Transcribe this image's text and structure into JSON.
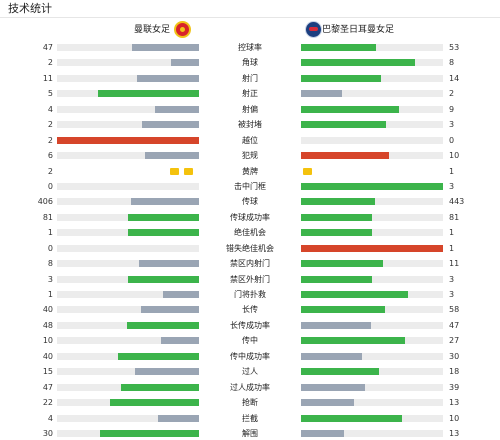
{
  "header": {
    "title": "技术统计"
  },
  "teams": {
    "home": {
      "name": "曼联女足",
      "logo_icon": "manchester-united-crest-icon"
    },
    "away": {
      "name": "巴黎圣日耳曼女足",
      "logo_icon": "psg-crest-icon"
    }
  },
  "colors": {
    "leading": "#3cb44b",
    "trailing": "#9aa5b4",
    "negative": "#d6452a",
    "track": "#ececec",
    "card": "#f4c20d"
  },
  "stats": [
    {
      "label": "控球率",
      "home": "47",
      "away": "53",
      "home_pct": 0.47,
      "away_pct": 0.53,
      "home_color": "#9aa5b4",
      "away_color": "#3cb44b"
    },
    {
      "label": "角球",
      "home": "2",
      "away": "8",
      "home_pct": 0.2,
      "away_pct": 0.8,
      "home_color": "#9aa5b4",
      "away_color": "#3cb44b"
    },
    {
      "label": "射门",
      "home": "11",
      "away": "14",
      "home_pct": 0.44,
      "away_pct": 0.56,
      "home_color": "#9aa5b4",
      "away_color": "#3cb44b"
    },
    {
      "label": "射正",
      "home": "5",
      "away": "2",
      "home_pct": 0.71,
      "away_pct": 0.29,
      "home_color": "#3cb44b",
      "away_color": "#9aa5b4"
    },
    {
      "label": "射偏",
      "home": "4",
      "away": "9",
      "home_pct": 0.31,
      "away_pct": 0.69,
      "home_color": "#9aa5b4",
      "away_color": "#3cb44b"
    },
    {
      "label": "被封堵",
      "home": "2",
      "away": "3",
      "home_pct": 0.4,
      "away_pct": 0.6,
      "home_color": "#9aa5b4",
      "away_color": "#3cb44b"
    },
    {
      "label": "越位",
      "home": "2",
      "away": "0",
      "home_pct": 1.0,
      "away_pct": 0.0,
      "home_color": "#d6452a",
      "away_color": "#9aa5b4"
    },
    {
      "label": "犯规",
      "home": "6",
      "away": "10",
      "home_pct": 0.38,
      "away_pct": 0.62,
      "home_color": "#9aa5b4",
      "away_color": "#d6452a"
    },
    {
      "label": "黄牌",
      "home": "2",
      "away": "1",
      "home_pct": 0.0,
      "away_pct": 0.0,
      "home_color": "#f4c20d",
      "away_color": "#f4c20d",
      "home_cards": 2,
      "away_cards": 1
    },
    {
      "label": "击中门框",
      "home": "0",
      "away": "3",
      "home_pct": 0.0,
      "away_pct": 1.0,
      "home_color": "#9aa5b4",
      "away_color": "#3cb44b"
    },
    {
      "label": "传球",
      "home": "406",
      "away": "443",
      "home_pct": 0.48,
      "away_pct": 0.52,
      "home_color": "#9aa5b4",
      "away_color": "#3cb44b"
    },
    {
      "label": "传球成功率",
      "home": "81",
      "away": "81",
      "home_pct": 0.5,
      "away_pct": 0.5,
      "home_color": "#3cb44b",
      "away_color": "#3cb44b"
    },
    {
      "label": "绝佳机会",
      "home": "1",
      "away": "1",
      "home_pct": 0.5,
      "away_pct": 0.5,
      "home_color": "#3cb44b",
      "away_color": "#3cb44b"
    },
    {
      "label": "错失绝佳机会",
      "home": "0",
      "away": "1",
      "home_pct": 0.0,
      "away_pct": 1.0,
      "home_color": "#9aa5b4",
      "away_color": "#d6452a"
    },
    {
      "label": "禁区内射门",
      "home": "8",
      "away": "11",
      "home_pct": 0.42,
      "away_pct": 0.58,
      "home_color": "#9aa5b4",
      "away_color": "#3cb44b"
    },
    {
      "label": "禁区外射门",
      "home": "3",
      "away": "3",
      "home_pct": 0.5,
      "away_pct": 0.5,
      "home_color": "#3cb44b",
      "away_color": "#3cb44b"
    },
    {
      "label": "门将扑救",
      "home": "1",
      "away": "3",
      "home_pct": 0.25,
      "away_pct": 0.75,
      "home_color": "#9aa5b4",
      "away_color": "#3cb44b"
    },
    {
      "label": "长传",
      "home": "40",
      "away": "58",
      "home_pct": 0.41,
      "away_pct": 0.59,
      "home_color": "#9aa5b4",
      "away_color": "#3cb44b"
    },
    {
      "label": "长传成功率",
      "home": "48",
      "away": "47",
      "home_pct": 0.51,
      "away_pct": 0.49,
      "home_color": "#3cb44b",
      "away_color": "#9aa5b4"
    },
    {
      "label": "传中",
      "home": "10",
      "away": "27",
      "home_pct": 0.27,
      "away_pct": 0.73,
      "home_color": "#9aa5b4",
      "away_color": "#3cb44b"
    },
    {
      "label": "传中成功率",
      "home": "40",
      "away": "30",
      "home_pct": 0.57,
      "away_pct": 0.43,
      "home_color": "#3cb44b",
      "away_color": "#9aa5b4"
    },
    {
      "label": "过人",
      "home": "15",
      "away": "18",
      "home_pct": 0.45,
      "away_pct": 0.55,
      "home_color": "#9aa5b4",
      "away_color": "#3cb44b"
    },
    {
      "label": "过人成功率",
      "home": "47",
      "away": "39",
      "home_pct": 0.55,
      "away_pct": 0.45,
      "home_color": "#3cb44b",
      "away_color": "#9aa5b4"
    },
    {
      "label": "抢断",
      "home": "22",
      "away": "13",
      "home_pct": 0.63,
      "away_pct": 0.37,
      "home_color": "#3cb44b",
      "away_color": "#9aa5b4"
    },
    {
      "label": "拦截",
      "home": "4",
      "away": "10",
      "home_pct": 0.29,
      "away_pct": 0.71,
      "home_color": "#9aa5b4",
      "away_color": "#3cb44b"
    },
    {
      "label": "解围",
      "home": "30",
      "away": "13",
      "home_pct": 0.7,
      "away_pct": 0.3,
      "home_color": "#3cb44b",
      "away_color": "#9aa5b4"
    }
  ]
}
